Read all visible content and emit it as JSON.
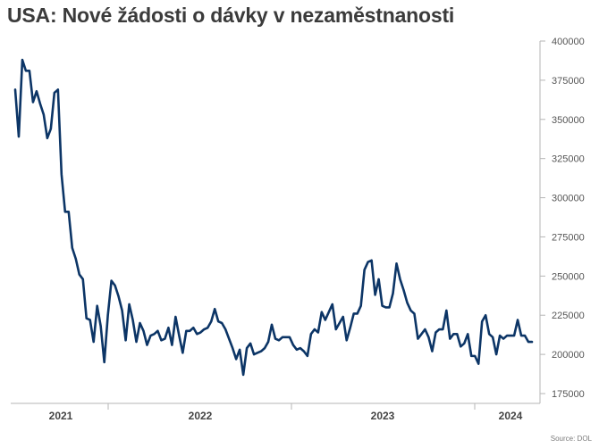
{
  "chart_data": {
    "type": "line",
    "title": "USA: Nové žádosti o dávky v nezaměstnanosti",
    "source": "Source: DOL",
    "ylim": [
      175000,
      400000
    ],
    "y_ticks": [
      {
        "value": 400000,
        "label": "400000"
      },
      {
        "value": 375000,
        "label": "375000"
      },
      {
        "value": 350000,
        "label": "350000"
      },
      {
        "value": 325000,
        "label": "325000"
      },
      {
        "value": 300000,
        "label": "300000"
      },
      {
        "value": 275000,
        "label": "275000"
      },
      {
        "value": 250000,
        "label": "250000"
      },
      {
        "value": 225000,
        "label": "225000"
      },
      {
        "value": 200000,
        "label": "200000"
      },
      {
        "value": 175000,
        "label": "175000"
      }
    ],
    "x_labels": [
      "2021",
      "2022",
      "2023",
      "2024"
    ],
    "grid": false,
    "legend": "none",
    "line_color": "#0c3566",
    "series": [
      {
        "values": [
          369000,
          339000,
          388000,
          381000,
          381000,
          361000,
          368000,
          360000,
          353000,
          338000,
          344000,
          367000,
          369000,
          315000,
          291000,
          291000,
          268000,
          261000,
          251000,
          248000,
          223000,
          222000,
          208000,
          231000,
          218000,
          195000,
          225000,
          247000,
          244000,
          237000,
          228000,
          209000,
          232000,
          222000,
          208000,
          220000,
          215000,
          206000,
          212000,
          213000,
          215000,
          209000,
          210000,
          217000,
          206000,
          224000,
          212000,
          201000,
          215000,
          215000,
          217000,
          213000,
          214000,
          216000,
          217000,
          221000,
          229000,
          221000,
          220000,
          216000,
          210000,
          204000,
          197000,
          203000,
          187000,
          204000,
          207000,
          200000,
          201000,
          202000,
          204000,
          208000,
          219000,
          210000,
          209000,
          211000,
          211000,
          211000,
          206000,
          203000,
          204000,
          202000,
          199000,
          213000,
          216000,
          214000,
          227000,
          222000,
          227000,
          232000,
          216000,
          220000,
          224000,
          209000,
          217000,
          226000,
          226000,
          231000,
          254000,
          259000,
          260000,
          238000,
          248000,
          231000,
          230000,
          230000,
          239000,
          258000,
          248000,
          241000,
          233000,
          228000,
          226000,
          210000,
          213000,
          216000,
          211000,
          202000,
          214000,
          216000,
          216000,
          228000,
          210000,
          213000,
          213000,
          205000,
          207000,
          213000,
          199000,
          199000,
          194000,
          221000,
          225000,
          213000,
          211000,
          200000,
          212000,
          210000,
          212000,
          212000,
          212000,
          222000,
          212000,
          212000,
          208000,
          208000
        ]
      }
    ]
  }
}
